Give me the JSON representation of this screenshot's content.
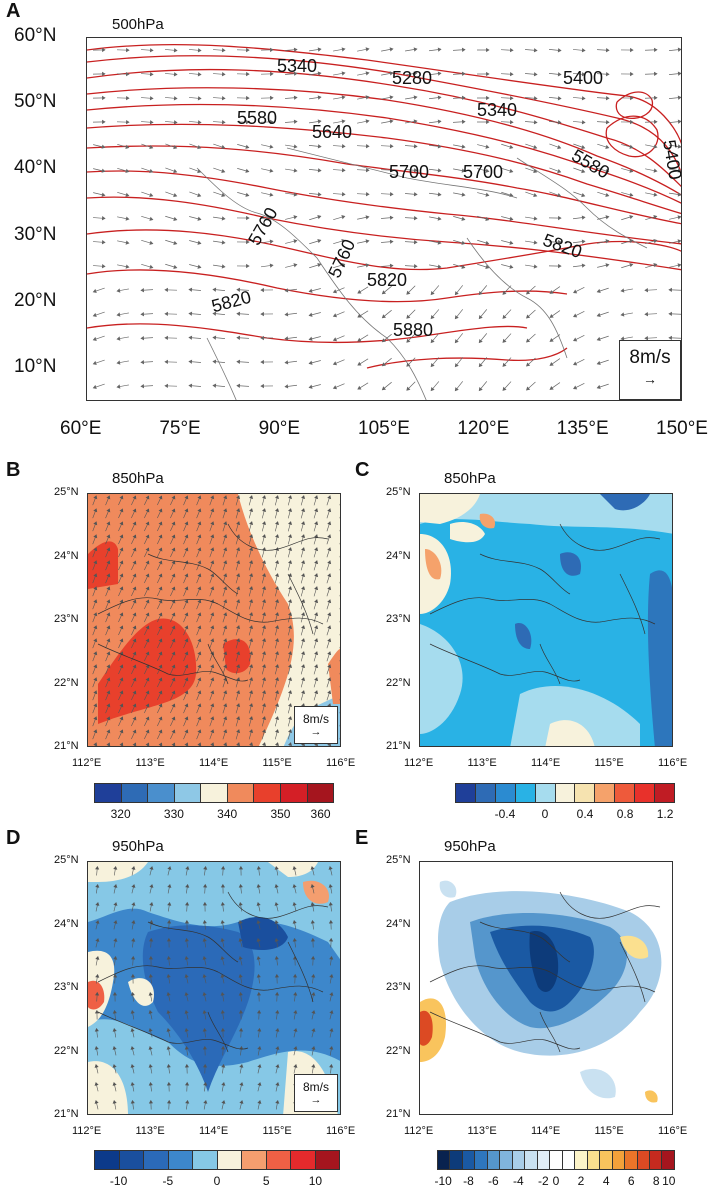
{
  "panel_a": {
    "letter": "A",
    "level": "500hPa",
    "lat_ticks": [
      "60°N",
      "50°N",
      "40°N",
      "30°N",
      "20°N",
      "10°N"
    ],
    "lon_ticks": [
      "60°E",
      "75°E",
      "90°E",
      "105°E",
      "120°E",
      "135°E",
      "150°E"
    ],
    "contour_labels": [
      "5340",
      "5280",
      "5340",
      "5400",
      "5400",
      "5580",
      "5640",
      "5700",
      "5700",
      "5580",
      "5760",
      "5760",
      "5820",
      "5820",
      "5820",
      "5880"
    ],
    "ref_vector": "8m/s"
  },
  "panel_b": {
    "letter": "B",
    "level": "850hPa",
    "ref_vector": "8m/s",
    "colorbar_labels": [
      "320",
      "330",
      "340",
      "350",
      "360"
    ],
    "colors": [
      "#1f3f99",
      "#2e6bb5",
      "#4a8fcd",
      "#8ec8e6",
      "#f7f2dc",
      "#f08a5c",
      "#e8402c",
      "#d41f26",
      "#a5151e"
    ]
  },
  "panel_c": {
    "letter": "C",
    "level": "850hPa",
    "colorbar_labels": [
      "-0.4",
      "0",
      "0.4",
      "0.8",
      "1.2"
    ],
    "colors": [
      "#1f3f99",
      "#2e6bb5",
      "#2b8bd1",
      "#29b2e5",
      "#a6dcee",
      "#f7f2dc",
      "#f6e3b0",
      "#f5a26b",
      "#ee5a3b",
      "#e8312b",
      "#c01c24"
    ]
  },
  "panel_d": {
    "letter": "D",
    "level": "950hPa",
    "ref_vector": "8m/s",
    "colorbar_labels": [
      "-10",
      "-5",
      "0",
      "5",
      "10"
    ],
    "colors": [
      "#0c3a8a",
      "#1a4f9e",
      "#2b6ab8",
      "#3d87cb",
      "#86c8e6",
      "#f7f2dc",
      "#f49e6f",
      "#ef6045",
      "#e52a2c",
      "#a5151e"
    ]
  },
  "panel_e": {
    "letter": "E",
    "level": "950hPa",
    "colorbar_labels": [
      "-10",
      "-8",
      "-6",
      "-4",
      "-2",
      "0",
      "2",
      "4",
      "6",
      "8",
      "10"
    ],
    "colors": [
      "#08224f",
      "#0d3b7a",
      "#1a59a3",
      "#2e76bd",
      "#5596cc",
      "#80b4dd",
      "#a8cde8",
      "#c9e1f1",
      "#e2eef7",
      "#ffffff",
      "#ffffff",
      "#fdf4c8",
      "#fbe08f",
      "#f9c45d",
      "#f3a13a",
      "#ea7429",
      "#dc4a23",
      "#c62a1f",
      "#a5151e"
    ]
  },
  "small_maps": {
    "lat_ticks": [
      "25°N",
      "24°N",
      "23°N",
      "22°N",
      "21°N"
    ],
    "lon_ticks": [
      "112°E",
      "113°E",
      "114°E",
      "115°E",
      "116°E"
    ]
  }
}
